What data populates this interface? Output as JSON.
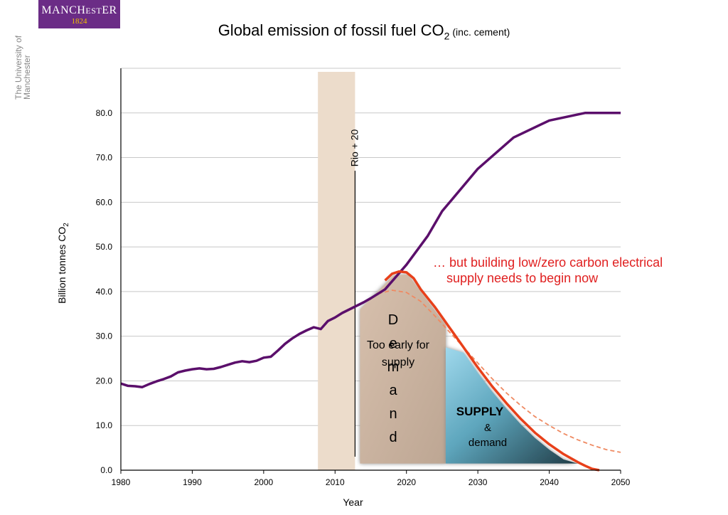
{
  "logo": {
    "word_pre": "MANCH",
    "word_mid": "EST",
    "word_post": "ER",
    "year": "1824"
  },
  "institution": "The University of Manchester",
  "title": {
    "main": "Global emission of fossil fuel CO",
    "sub": "2",
    "paren": "(inc. cement)"
  },
  "chart_data": {
    "type": "line",
    "xlabel": "Year",
    "ylabel": "Billion tonnes CO",
    "ylabel_sub": "2",
    "xlim": [
      1980,
      2050
    ],
    "ylim": [
      0,
      90
    ],
    "x_ticks": [
      "1980",
      "1990",
      "2000",
      "2010",
      "2020",
      "2030",
      "2040",
      "2050"
    ],
    "y_ticks": [
      "0.0",
      "10.0",
      "20.0",
      "30.0",
      "40.0",
      "50.0",
      "60.0",
      "70.0",
      "80.0"
    ],
    "grid": true,
    "colors": {
      "historical": "#5b0f6b",
      "peak": "#e8401a",
      "dashed": "#ef8a62",
      "band": "#ecdccb"
    },
    "series": [
      {
        "key": "historical",
        "x": [
          1980,
          1981,
          1982,
          1983,
          1984,
          1985,
          1986,
          1987,
          1988,
          1989,
          1990,
          1991,
          1992,
          1993,
          1994,
          1995,
          1996,
          1997,
          1998,
          1999,
          2000,
          2001,
          2002,
          2003,
          2004,
          2005,
          2006,
          2007,
          2008,
          2009,
          2010,
          2011,
          2012,
          2013,
          2014,
          2015,
          2017,
          2020,
          2023,
          2025,
          2030,
          2035,
          2040,
          2045,
          2048,
          2050
        ],
        "values": [
          19.4,
          18.9,
          18.8,
          18.6,
          19.3,
          19.9,
          20.4,
          21.0,
          21.9,
          22.3,
          22.6,
          22.8,
          22.6,
          22.7,
          23.1,
          23.6,
          24.1,
          24.4,
          24.2,
          24.5,
          25.2,
          25.4,
          26.8,
          28.3,
          29.5,
          30.5,
          31.3,
          32.0,
          31.6,
          33.4,
          34.2,
          35.2,
          36.0,
          36.8,
          37.6,
          38.5,
          40.5,
          46.0,
          52.5,
          58.0,
          67.5,
          74.5,
          78.3,
          80.0,
          80.0,
          80.0
        ]
      },
      {
        "key": "peak",
        "x": [
          2017,
          2018,
          2019,
          2020,
          2021,
          2022,
          2024,
          2026,
          2028,
          2030,
          2032,
          2034,
          2036,
          2038,
          2040,
          2042,
          2044,
          2045,
          2046,
          2047
        ],
        "values": [
          42.5,
          44.0,
          44.5,
          44.3,
          43.0,
          40.5,
          36.5,
          32.0,
          27.5,
          23.0,
          18.8,
          15.0,
          11.5,
          8.4,
          5.8,
          3.6,
          1.8,
          1.0,
          0.3,
          0.0
        ]
      },
      {
        "key": "dashed",
        "x": [
          2016,
          2018,
          2020,
          2022,
          2024,
          2026,
          2028,
          2030,
          2032,
          2034,
          2036,
          2038,
          2040,
          2042,
          2044,
          2046,
          2048,
          2050
        ],
        "values": [
          39.5,
          40.3,
          39.8,
          37.8,
          34.5,
          31.0,
          27.5,
          24.0,
          20.5,
          17.3,
          14.5,
          12.0,
          10.0,
          8.2,
          6.8,
          5.6,
          4.6,
          4.0
        ]
      }
    ],
    "band": {
      "x_start": 2007.6,
      "x_end": 2012.8
    },
    "marker": {
      "x": 2012.8,
      "label": "Rio + 20"
    },
    "annotations": {
      "demand_letters": [
        "D",
        "e",
        "m",
        "a",
        "n",
        "d"
      ],
      "too_early": [
        "Too early for",
        "supply"
      ],
      "supply_bold": "SUPPLY",
      "supply_rest": [
        "&",
        "demand"
      ],
      "callout": [
        "… but building low/zero carbon electrical",
        "supply needs to begin now"
      ]
    }
  }
}
